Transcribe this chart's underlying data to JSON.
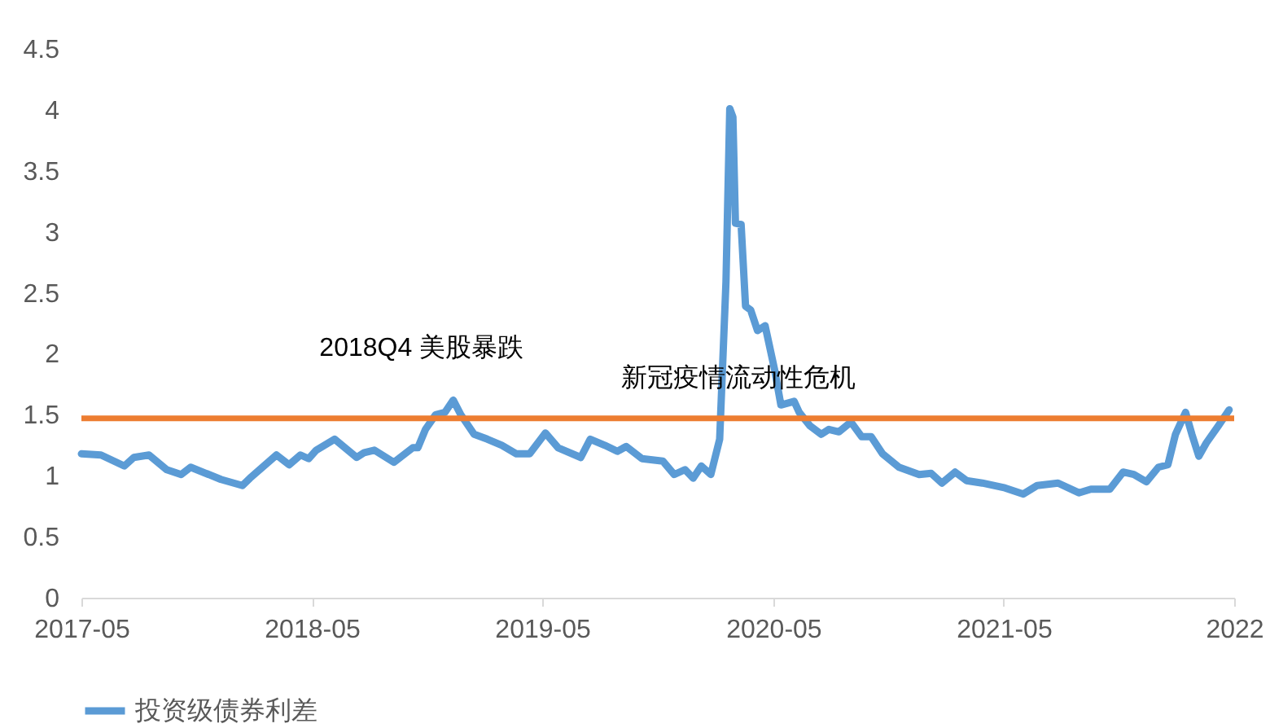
{
  "chart_data": {
    "type": "line",
    "legend": "bottom",
    "grid": false,
    "marker": "none",
    "line_style": "solid",
    "xlim": [
      "2017-05",
      "2022-05"
    ],
    "xticks": [
      "2017-05",
      "2018-05",
      "2019-05",
      "2020-05",
      "2021-05",
      {
        "value": "2022-05",
        "label": "2022"
      }
    ],
    "ylim": [
      0,
      4.5
    ],
    "yticks": [
      0,
      0.5,
      1,
      1.5,
      2,
      2.5,
      3,
      3.5,
      4,
      4.5
    ],
    "ref_lines": [
      {
        "axis": "y",
        "value": 1.47,
        "color": "#ed7d31"
      }
    ],
    "annotations": [
      "2018Q4 美股暴跌",
      "新冠疫情流动性危机"
    ],
    "series": [
      {
        "name": "投资级债券利差",
        "color": "#5b9bd5",
        "x": [
          "2017-05-01",
          "2017-06-01",
          "2017-07-08",
          "2017-07-23",
          "2017-08-16",
          "2017-09-13",
          "2017-10-06",
          "2017-10-21",
          "2017-12-08",
          "2018-01-11",
          "2018-01-23",
          "2018-03-06",
          "2018-03-26",
          "2018-04-13",
          "2018-04-26",
          "2018-05-08",
          "2018-06-06",
          "2018-07-11",
          "2018-07-23",
          "2018-08-08",
          "2018-09-08",
          "2018-10-08",
          "2018-10-16",
          "2018-10-28",
          "2018-11-13",
          "2018-11-28",
          "2018-12-11",
          "2018-12-23",
          "2019-01-13",
          "2019-02-03",
          "2019-02-26",
          "2019-03-21",
          "2019-04-11",
          "2019-05-06",
          "2019-05-26",
          "2019-07-01",
          "2019-07-16",
          "2019-08-08",
          "2019-08-28",
          "2019-09-11",
          "2019-10-06",
          "2019-11-08",
          "2019-11-26",
          "2019-12-13",
          "2019-12-26",
          "2020-01-08",
          "2020-01-23",
          "2020-02-06",
          "2020-02-16",
          "2020-02-22",
          "2020-02-27",
          "2020-03-02",
          "2020-03-11",
          "2020-03-18",
          "2020-03-26",
          "2020-04-06",
          "2020-04-18",
          "2020-05-03",
          "2020-05-13",
          "2020-06-03",
          "2020-06-11",
          "2020-06-28",
          "2020-07-16",
          "2020-07-28",
          "2020-08-13",
          "2020-09-01",
          "2020-09-18",
          "2020-10-03",
          "2020-10-21",
          "2020-11-16",
          "2020-12-18",
          "2021-01-06",
          "2021-01-23",
          "2021-02-13",
          "2021-03-03",
          "2021-03-28",
          "2021-05-03",
          "2021-06-01",
          "2021-06-23",
          "2021-07-26",
          "2021-08-28",
          "2021-09-16",
          "2021-10-16",
          "2021-11-06",
          "2021-11-23",
          "2021-12-13",
          "2022-01-01",
          "2022-01-16",
          "2022-01-28",
          "2022-02-13",
          "2022-02-23",
          "2022-03-06",
          "2022-03-18",
          "2022-04-06",
          "2022-04-23"
        ],
        "values": [
          1.18,
          1.17,
          1.08,
          1.15,
          1.17,
          1.05,
          1.01,
          1.07,
          0.97,
          0.92,
          0.98,
          1.17,
          1.09,
          1.17,
          1.14,
          1.21,
          1.3,
          1.15,
          1.19,
          1.21,
          1.11,
          1.23,
          1.23,
          1.38,
          1.5,
          1.52,
          1.62,
          1.5,
          1.34,
          1.3,
          1.25,
          1.18,
          1.18,
          1.35,
          1.23,
          1.15,
          1.3,
          1.25,
          1.2,
          1.24,
          1.14,
          1.12,
          1.01,
          1.05,
          0.98,
          1.08,
          1.01,
          1.3,
          2.59,
          4.01,
          3.94,
          3.07,
          3.06,
          2.39,
          2.36,
          2.19,
          2.23,
          1.87,
          1.58,
          1.61,
          1.52,
          1.41,
          1.34,
          1.38,
          1.36,
          1.44,
          1.32,
          1.32,
          1.18,
          1.07,
          1.01,
          1.02,
          0.94,
          1.03,
          0.96,
          0.94,
          0.9,
          0.85,
          0.92,
          0.94,
          0.86,
          0.89,
          0.89,
          1.03,
          1.01,
          0.95,
          1.07,
          1.09,
          1.34,
          1.52,
          1.34,
          1.16,
          1.27,
          1.41,
          1.54
        ]
      }
    ]
  }
}
